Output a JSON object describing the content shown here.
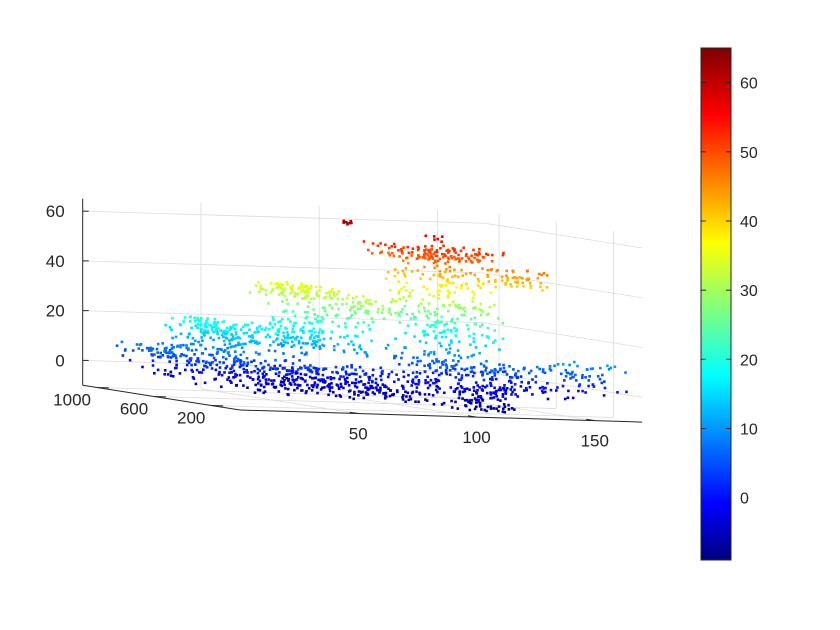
{
  "chart_data": {
    "type": "scatter",
    "title": "",
    "xlabel": "",
    "ylabel": "",
    "zlabel": "",
    "colormap": "jet",
    "grid": true,
    "x_range": [
      0,
      170
    ],
    "y_range": [
      0,
      1100
    ],
    "z_range": [
      -10,
      65
    ],
    "x_ticks": [
      {
        "value": 50,
        "label": "50"
      },
      {
        "value": 100,
        "label": "100"
      },
      {
        "value": 150,
        "label": "150"
      }
    ],
    "y_ticks": [
      {
        "value": 1000,
        "label": "1000"
      },
      {
        "value": 600,
        "label": "600"
      },
      {
        "value": 200,
        "label": "200"
      }
    ],
    "z_ticks": [
      {
        "value": 60,
        "label": "60"
      },
      {
        "value": 40,
        "label": "40"
      },
      {
        "value": 20,
        "label": "20"
      },
      {
        "value": 0,
        "label": "0"
      }
    ],
    "colorbar": {
      "range": [
        -9,
        65
      ],
      "ticks": [
        {
          "value": 60,
          "label": "60"
        },
        {
          "value": 50,
          "label": "50"
        },
        {
          "value": 40,
          "label": "40"
        },
        {
          "value": 30,
          "label": "30"
        },
        {
          "value": 20,
          "label": "20"
        },
        {
          "value": 10,
          "label": "10"
        },
        {
          "value": 0,
          "label": "0"
        }
      ]
    },
    "clusters": [
      {
        "x": [
          2,
          8
        ],
        "y": [
          500,
          900
        ],
        "z": [
          6,
          10
        ],
        "n": 25
      },
      {
        "x": [
          5,
          35
        ],
        "y": [
          300,
          1000
        ],
        "z": [
          -2,
          10
        ],
        "n": 120
      },
      {
        "x": [
          18,
          35
        ],
        "y": [
          500,
          800
        ],
        "z": [
          16,
          22
        ],
        "n": 60
      },
      {
        "x": [
          20,
          40
        ],
        "y": [
          400,
          900
        ],
        "z": [
          6,
          18
        ],
        "n": 90
      },
      {
        "x": [
          30,
          62
        ],
        "y": [
          350,
          800
        ],
        "z": [
          13,
          20
        ],
        "n": 80
      },
      {
        "x": [
          25,
          75
        ],
        "y": [
          200,
          900
        ],
        "z": [
          -6,
          6
        ],
        "n": 220
      },
      {
        "x": [
          55,
          80
        ],
        "y": [
          500,
          900
        ],
        "z": [
          31,
          36
        ],
        "n": 110
      },
      {
        "x": [
          58,
          72
        ],
        "y": [
          500,
          800
        ],
        "z": [
          8,
          30
        ],
        "n": 90
      },
      {
        "x": [
          70,
          78
        ],
        "y": [
          300,
          700
        ],
        "z": [
          10,
          32
        ],
        "n": 70
      },
      {
        "x": [
          74,
          84
        ],
        "y": [
          200,
          600
        ],
        "z": [
          25,
          35
        ],
        "n": 40
      },
      {
        "x": [
          60,
          110
        ],
        "y": [
          100,
          800
        ],
        "z": [
          -7,
          4
        ],
        "n": 220
      },
      {
        "x": [
          105,
          140
        ],
        "y": [
          400,
          900
        ],
        "z": [
          48,
          53
        ],
        "n": 130
      },
      {
        "x": [
          108,
          120
        ],
        "y": [
          450,
          800
        ],
        "z": [
          5,
          48
        ],
        "n": 150
      },
      {
        "x": [
          120,
          132
        ],
        "y": [
          300,
          700
        ],
        "z": [
          3,
          45
        ],
        "n": 150
      },
      {
        "x": [
          132,
          146
        ],
        "y": [
          200,
          500
        ],
        "z": [
          40,
          47
        ],
        "n": 50
      },
      {
        "x": [
          110,
          150
        ],
        "y": [
          100,
          700
        ],
        "z": [
          -3,
          8
        ],
        "n": 160
      },
      {
        "x": [
          140,
          165
        ],
        "y": [
          0,
          300
        ],
        "z": [
          0,
          12
        ],
        "n": 60
      },
      {
        "x": [
          100,
          120
        ],
        "y": [
          0,
          200
        ],
        "z": [
          -8,
          0
        ],
        "n": 70
      },
      {
        "x": [
          88,
          92
        ],
        "y": [
          700,
          800
        ],
        "z": [
          60,
          63
        ],
        "n": 8
      },
      {
        "x": [
          120,
          125
        ],
        "y": [
          600,
          700
        ],
        "z": [
          55,
          58
        ],
        "n": 6
      }
    ]
  }
}
